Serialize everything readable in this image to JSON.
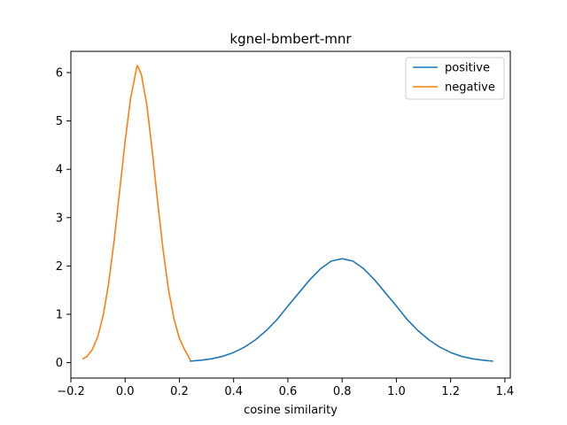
{
  "chart_data": {
    "type": "line",
    "title": "kgnel-bmbert-mnr",
    "xlabel": "cosine similarity",
    "ylabel": "",
    "xlim": [
      -0.2,
      1.42
    ],
    "ylim": [
      -0.32,
      6.44
    ],
    "xticks": [
      -0.2,
      0.0,
      0.2,
      0.4,
      0.6,
      0.8,
      1.0,
      1.2,
      1.4
    ],
    "xtick_labels": [
      "−0.2",
      "0.0",
      "0.2",
      "0.4",
      "0.6",
      "0.8",
      "1.0",
      "1.2",
      "1.4"
    ],
    "yticks": [
      0,
      1,
      2,
      3,
      4,
      5,
      6
    ],
    "ytick_labels": [
      "0",
      "1",
      "2",
      "3",
      "4",
      "5",
      "6"
    ],
    "legend_position": "top-right",
    "series": [
      {
        "name": "positive",
        "color": "#1f77b4",
        "x": [
          0.24,
          0.28,
          0.32,
          0.36,
          0.4,
          0.44,
          0.48,
          0.52,
          0.56,
          0.6,
          0.64,
          0.68,
          0.72,
          0.76,
          0.8,
          0.84,
          0.88,
          0.92,
          0.96,
          1.0,
          1.04,
          1.08,
          1.12,
          1.16,
          1.2,
          1.24,
          1.28,
          1.32,
          1.355
        ],
        "values": [
          0.03,
          0.05,
          0.08,
          0.13,
          0.21,
          0.32,
          0.47,
          0.66,
          0.89,
          1.17,
          1.44,
          1.71,
          1.94,
          2.1,
          2.15,
          2.1,
          1.94,
          1.71,
          1.44,
          1.17,
          0.89,
          0.66,
          0.47,
          0.32,
          0.21,
          0.13,
          0.08,
          0.05,
          0.03
        ]
      },
      {
        "name": "negative",
        "color": "#ff7f0e",
        "x": [
          -0.155,
          -0.14,
          -0.12,
          -0.1,
          -0.08,
          -0.06,
          -0.04,
          -0.02,
          0.0,
          0.02,
          0.04,
          0.045,
          0.06,
          0.08,
          0.1,
          0.12,
          0.14,
          0.16,
          0.18,
          0.2,
          0.22,
          0.24
        ],
        "values": [
          0.08,
          0.13,
          0.28,
          0.55,
          1.0,
          1.67,
          2.55,
          3.56,
          4.58,
          5.46,
          6.03,
          6.15,
          5.96,
          5.33,
          4.38,
          3.32,
          2.33,
          1.51,
          0.91,
          0.5,
          0.26,
          0.06
        ]
      }
    ]
  }
}
